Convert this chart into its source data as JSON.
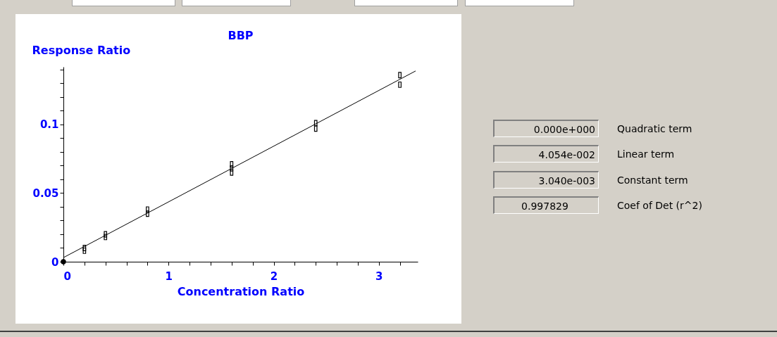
{
  "chart_data": {
    "type": "scatter",
    "title": "BBP",
    "xlabel": "Concentration Ratio",
    "ylabel": "Response Ratio",
    "xlim": [
      0,
      3.37
    ],
    "ylim": [
      0,
      0.142
    ],
    "xticks": [
      0,
      {
        "value": 0.2,
        "label": null
      },
      {
        "value": 0.4,
        "label": null
      },
      {
        "value": 0.6,
        "label": null
      },
      {
        "value": 0.8,
        "label": null
      },
      1,
      {
        "value": 1.2,
        "label": null
      },
      {
        "value": 1.4,
        "label": null
      },
      {
        "value": 1.6,
        "label": null
      },
      {
        "value": 1.8,
        "label": null
      },
      2,
      {
        "value": 2.2,
        "label": null
      },
      {
        "value": 2.4,
        "label": null
      },
      {
        "value": 2.6,
        "label": null
      },
      {
        "value": 2.8,
        "label": null
      },
      3,
      {
        "value": 3.2,
        "label": null
      }
    ],
    "yticks": [
      0,
      {
        "value": 0.01,
        "label": null
      },
      {
        "value": 0.02,
        "label": null
      },
      {
        "value": 0.03,
        "label": null
      },
      {
        "value": 0.04,
        "label": null
      },
      0.05,
      {
        "value": 0.06,
        "label": null
      },
      {
        "value": 0.07,
        "label": null
      },
      {
        "value": 0.08,
        "label": null
      },
      {
        "value": 0.09,
        "label": null
      },
      0.1,
      {
        "value": 0.11,
        "label": null
      },
      {
        "value": 0.12,
        "label": null
      },
      {
        "value": 0.13,
        "label": null
      },
      {
        "value": 0.14,
        "label": null
      }
    ],
    "grid": false,
    "series": [
      {
        "type": "scatter",
        "marker": "square",
        "color": "#000000",
        "x": [
          0.2,
          0.2,
          0.4,
          0.4,
          0.8,
          0.8,
          1.6,
          1.6,
          1.6,
          2.4,
          2.4,
          3.2,
          3.2
        ],
        "values": [
          0.01,
          0.008,
          0.02,
          0.018,
          0.038,
          0.035,
          0.071,
          0.068,
          0.065,
          0.101,
          0.097,
          0.136,
          0.129
        ]
      },
      {
        "type": "scatter",
        "marker": "circle",
        "color": "#000000",
        "x": [
          0
        ],
        "values": [
          0
        ]
      },
      {
        "type": "line",
        "color": "#000000",
        "x": [
          0,
          3.35
        ],
        "values": [
          0.003,
          0.139
        ]
      }
    ],
    "annotations": [
      "0.000e+000",
      "Quadratic term",
      "4.054e-002",
      "Linear term",
      "3.040e-003",
      "Constant term",
      "0.997829",
      "Coef of Det (r^2)"
    ]
  }
}
